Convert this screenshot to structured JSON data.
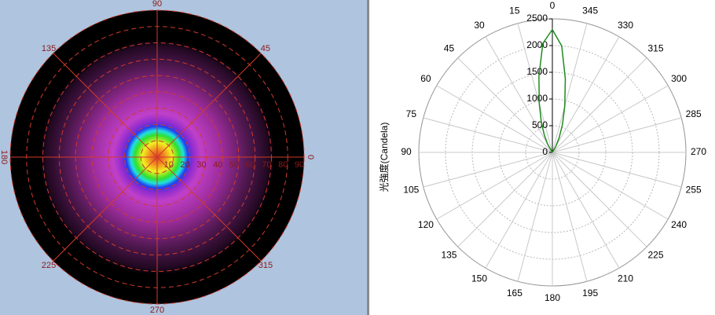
{
  "chart_data": [
    {
      "type": "polar-map",
      "angle_ticks": [
        90,
        135,
        45,
        180,
        0,
        225,
        315,
        270
      ],
      "rlim": [
        0,
        90
      ],
      "rticks": [
        10,
        20,
        30,
        40,
        50,
        60,
        70,
        80,
        90
      ],
      "line_color": "#d03a2a"
    },
    {
      "type": "polar-line",
      "y_label": "光強度(Candela)",
      "angle_ticks": [
        0,
        15,
        30,
        45,
        60,
        75,
        90,
        105,
        120,
        135,
        150,
        165,
        180,
        195,
        210,
        225,
        240,
        255,
        270,
        285,
        300,
        315,
        330,
        345
      ],
      "rlim": [
        0,
        2500
      ],
      "rticks": [
        0,
        500,
        1000,
        1500,
        2000,
        2500
      ],
      "grid": true,
      "series": [
        {
          "color": "#1e8c1e",
          "x": [
            320,
            330,
            335,
            340,
            345,
            350,
            355,
            0,
            5,
            10,
            15,
            20,
            25,
            30,
            40
          ],
          "values": [
            0,
            120,
            300,
            550,
            900,
            1400,
            2000,
            2300,
            2050,
            1450,
            950,
            600,
            350,
            180,
            0
          ]
        }
      ]
    }
  ]
}
